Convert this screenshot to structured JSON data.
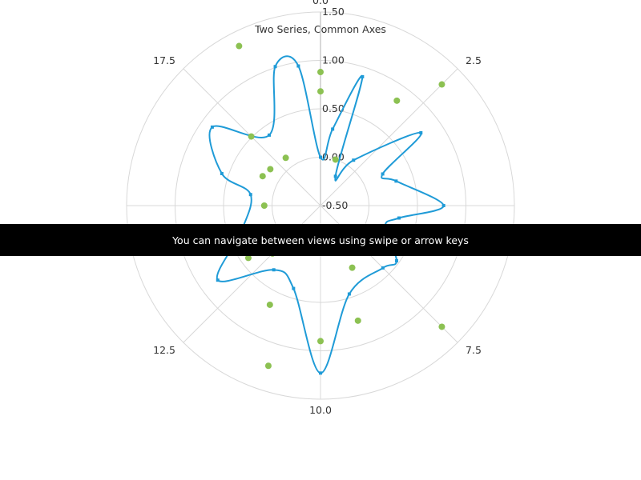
{
  "chart_data": {
    "type": "polar",
    "title": "Two Series, Common Axes",
    "angle_axis": {
      "min": 0,
      "max": 20,
      "ticks": [
        "0.0",
        "2.5",
        "7.5",
        "10.0",
        "12.5",
        "17.5"
      ]
    },
    "radius_axis": {
      "min": -0.5,
      "max": 1.5,
      "ticks": [
        "1.50",
        "1.00",
        "0.50",
        "0.00",
        "-0.50"
      ]
    },
    "grid": true,
    "series": [
      {
        "type": "spline",
        "color": "#1f9bd7",
        "points": [
          {
            "x": 0,
            "y": 0
          },
          {
            "x": 0.5,
            "y": 0.3
          },
          {
            "x": 1,
            "y": 0.9
          },
          {
            "x": 1.5,
            "y": -0.16
          },
          {
            "x": 2,
            "y": 0.08
          },
          {
            "x": 3,
            "y": 0.78
          },
          {
            "x": 3.5,
            "y": 0.22
          },
          {
            "x": 4,
            "y": 0.32
          },
          {
            "x": 5,
            "y": 0.77
          },
          {
            "x": 5.5,
            "y": 0.32
          },
          {
            "x": 6,
            "y": 0.2
          },
          {
            "x": 7,
            "y": 0.47
          },
          {
            "x": 7.5,
            "y": 0.41
          },
          {
            "x": 9,
            "y": 0.46
          },
          {
            "x": 10,
            "y": 1.23
          },
          {
            "x": 11,
            "y": 0.4
          },
          {
            "x": 12,
            "y": 0.32
          },
          {
            "x": 13,
            "y": 0.81
          },
          {
            "x": 14,
            "y": 0.36
          },
          {
            "x": 15.5,
            "y": 0.23
          },
          {
            "x": 16,
            "y": 0.57
          },
          {
            "x": 17,
            "y": 0.88
          },
          {
            "x": 18,
            "y": 0.4
          },
          {
            "x": 19,
            "y": 1.01
          },
          {
            "x": 19.5,
            "y": 0.96
          }
        ]
      },
      {
        "type": "scatter",
        "color": "#8cc152",
        "points": [
          {
            "x": 0,
            "y": 0.88
          },
          {
            "x": 0,
            "y": 0.68
          },
          {
            "x": 1,
            "y": 0.0
          },
          {
            "x": 2,
            "y": 0.84
          },
          {
            "x": 2.5,
            "y": 1.27
          },
          {
            "x": 7,
            "y": 0.33
          },
          {
            "x": 7.5,
            "y": 1.27
          },
          {
            "x": 8.5,
            "y": 0.22
          },
          {
            "x": 9,
            "y": 0.75
          },
          {
            "x": 10,
            "y": 0.9
          },
          {
            "x": 11,
            "y": 1.24
          },
          {
            "x": 11.5,
            "y": 0.65
          },
          {
            "x": 12.5,
            "y": 0.2
          },
          {
            "x": 13,
            "y": 0.42
          },
          {
            "x": 15,
            "y": 0.08
          },
          {
            "x": 16.5,
            "y": 0.17
          },
          {
            "x": 17,
            "y": 0.14
          },
          {
            "x": 17.5,
            "y": 0.51
          },
          {
            "x": 18,
            "y": 0.11
          },
          {
            "x": 18.5,
            "y": 1.35
          }
        ]
      }
    ]
  },
  "notice": "You can navigate between views using swipe or arrow keys"
}
